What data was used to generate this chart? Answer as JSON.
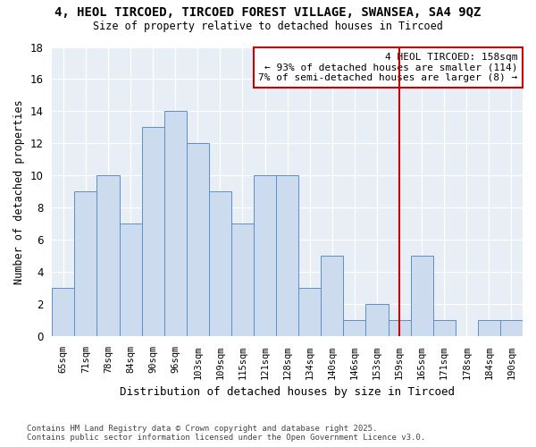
{
  "title1": "4, HEOL TIRCOED, TIRCOED FOREST VILLAGE, SWANSEA, SA4 9QZ",
  "title2": "Size of property relative to detached houses in Tircoed",
  "xlabel": "Distribution of detached houses by size in Tircoed",
  "ylabel": "Number of detached properties",
  "categories": [
    "65sqm",
    "71sqm",
    "78sqm",
    "84sqm",
    "90sqm",
    "96sqm",
    "103sqm",
    "109sqm",
    "115sqm",
    "121sqm",
    "128sqm",
    "134sqm",
    "140sqm",
    "146sqm",
    "153sqm",
    "159sqm",
    "165sqm",
    "171sqm",
    "178sqm",
    "184sqm",
    "190sqm"
  ],
  "values": [
    3,
    9,
    10,
    7,
    13,
    14,
    12,
    9,
    7,
    10,
    10,
    3,
    5,
    1,
    2,
    1,
    5,
    1,
    0,
    1,
    1
  ],
  "bar_color": "#ccdcee",
  "bar_edge_color": "#5b8fc8",
  "vline_x": 15,
  "vline_color": "#cc0000",
  "annotation_title": "4 HEOL TIRCOED: 158sqm",
  "annotation_line1": "← 93% of detached houses are smaller (114)",
  "annotation_line2": "7% of semi-detached houses are larger (8) →",
  "annotation_box_color": "#cc0000",
  "ylim": [
    0,
    18
  ],
  "yticks": [
    0,
    2,
    4,
    6,
    8,
    10,
    12,
    14,
    16,
    18
  ],
  "footnote": "Contains HM Land Registry data © Crown copyright and database right 2025.\nContains public sector information licensed under the Open Government Licence v3.0.",
  "bg_color": "#ffffff",
  "plot_bg_color": "#e8eef5"
}
